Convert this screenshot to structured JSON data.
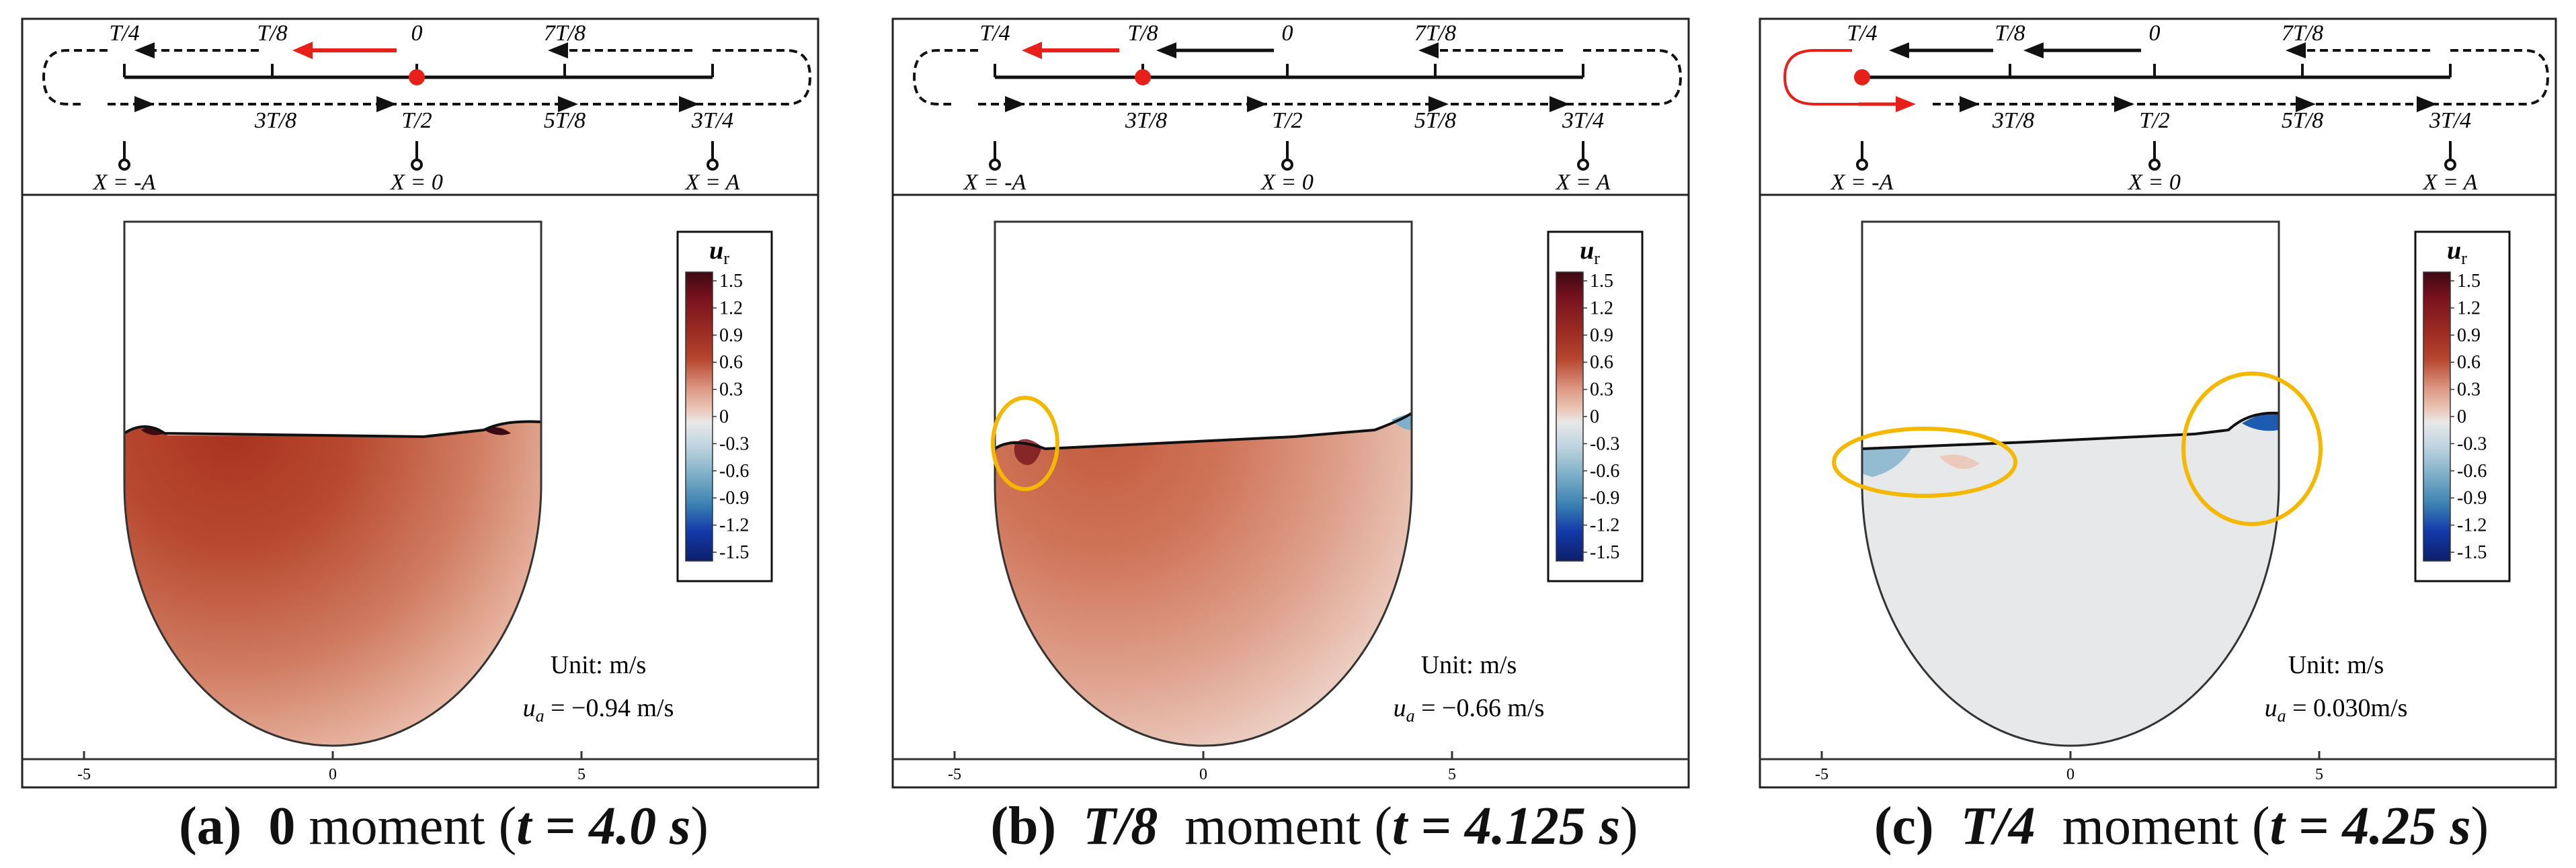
{
  "figure": {
    "colorbar": {
      "title_main": "u",
      "title_sub": "r",
      "ticks": [
        "1.5",
        "1.2",
        "0.9",
        "0.6",
        "0.3",
        "0",
        "-0.3",
        "-0.6",
        "-0.9",
        "-1.2",
        "-1.5"
      ],
      "colors": [
        "#3d0a13",
        "#74101e",
        "#9a2a22",
        "#b5452e",
        "#c8654a",
        "#dc9580",
        "#ebcabd",
        "#e8e8e8",
        "#c1d5e0",
        "#7fb0c9",
        "#3d83b3",
        "#1d5bb0",
        "#1238a8",
        "#0e1f6a"
      ]
    },
    "axis_ticks": [
      "-5",
      "0",
      "5"
    ],
    "positions": {
      "top_labels": [
        "T/4",
        "T/8",
        "0",
        "7T/8"
      ],
      "bottom_labels": [
        "3T/8",
        "T/2",
        "5T/8",
        "3T/4"
      ],
      "x_labels": [
        "X = -A",
        "X = 0",
        "X = A"
      ]
    },
    "unit_text": "Unit: m/s",
    "panels": [
      {
        "letter": "(a)",
        "moment_label": "0",
        "moment_word": "moment",
        "time_text": "t = 4.0 s",
        "ua_text": "u",
        "ua_sub": "a",
        "ua_value": " = −0.94 m/s"
      },
      {
        "letter": "(b)",
        "moment_label": "T/8",
        "moment_word": "moment",
        "time_text": "t = 4.125 s",
        "ua_text": "u",
        "ua_sub": "a",
        "ua_value": " = −0.66 m/s"
      },
      {
        "letter": "(c)",
        "moment_label": "T/4",
        "moment_word": "moment",
        "time_text": "t = 4.25 s",
        "ua_text": "u",
        "ua_sub": "a",
        "ua_value": " = 0.030m/s"
      }
    ],
    "colors": {
      "highlight_red": "#e8201a",
      "ellipse_orange": "#f5b800",
      "axis": "#333333"
    }
  }
}
